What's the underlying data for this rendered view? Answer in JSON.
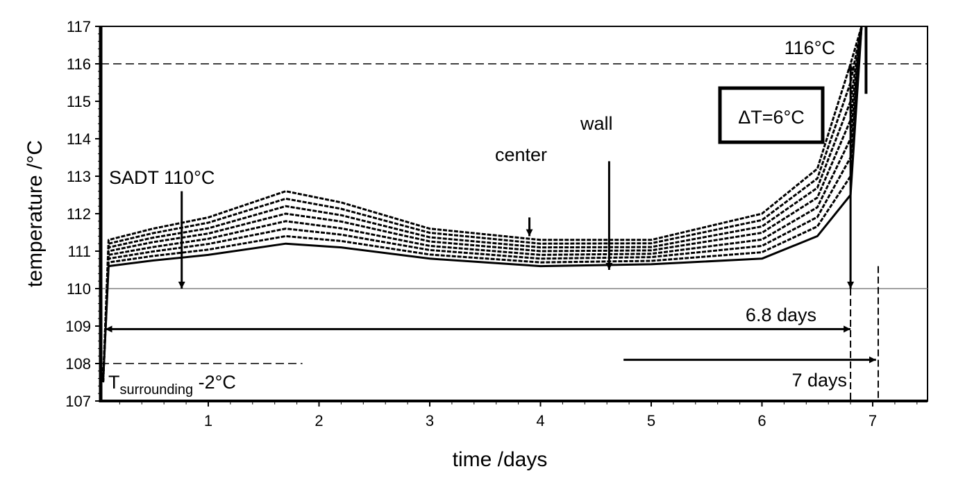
{
  "chart_data": {
    "type": "line",
    "title": "",
    "xlabel": "time /days",
    "ylabel": "temperature /°C",
    "xlim": [
      0,
      7.5
    ],
    "ylim": [
      107,
      117
    ],
    "xticks": [
      1,
      2,
      3,
      4,
      5,
      6,
      7
    ],
    "xtick_labels": [
      "1",
      "2",
      "3",
      "4",
      "5",
      "6",
      "7"
    ],
    "yticks": [
      107,
      108,
      109,
      110,
      111,
      112,
      113,
      114,
      115,
      116,
      117
    ],
    "ytick_labels": [
      "107",
      "108",
      "109",
      "110",
      "111",
      "112",
      "113",
      "114",
      "115",
      "116",
      "117"
    ],
    "grid": false,
    "x": [
      0.05,
      0.1,
      0.5,
      1,
      1.7,
      2.2,
      3,
      4,
      5,
      6,
      6.5,
      6.8,
      6.9
    ],
    "series": [
      {
        "values": [
          107.5,
          110.6,
          110.75,
          110.9,
          111.2,
          111.1,
          110.8,
          110.6,
          110.65,
          110.8,
          111.4,
          112.5,
          117
        ]
      },
      {
        "values": [
          107.5,
          110.7,
          110.87,
          111.04,
          111.4,
          111.27,
          110.91,
          110.7,
          110.74,
          110.97,
          111.66,
          113.0,
          117
        ]
      },
      {
        "values": [
          107.5,
          110.8,
          110.99,
          111.19,
          111.6,
          111.44,
          111.03,
          110.8,
          110.84,
          111.14,
          111.91,
          113.5,
          117
        ]
      },
      {
        "values": [
          107.5,
          110.9,
          111.11,
          111.33,
          111.8,
          111.61,
          111.14,
          110.9,
          110.93,
          111.31,
          112.17,
          114.0,
          117
        ]
      },
      {
        "values": [
          107.5,
          111.0,
          111.24,
          111.47,
          112.0,
          111.79,
          111.26,
          111.0,
          111.02,
          111.49,
          112.43,
          114.5,
          117
        ]
      },
      {
        "values": [
          107.5,
          111.1,
          111.36,
          111.61,
          112.2,
          111.96,
          111.37,
          111.1,
          111.11,
          111.66,
          112.69,
          115.0,
          117
        ]
      },
      {
        "values": [
          107.5,
          111.2,
          111.48,
          111.76,
          112.4,
          112.13,
          111.49,
          111.2,
          111.21,
          111.83,
          112.94,
          115.5,
          117
        ]
      },
      {
        "values": [
          107.5,
          111.3,
          111.6,
          111.9,
          112.6,
          112.3,
          111.6,
          111.3,
          111.3,
          112.0,
          113.2,
          116.0,
          117
        ]
      }
    ],
    "reference_lines": [
      {
        "y": 116,
        "style": "dashed"
      },
      {
        "y": 110,
        "style": "solid",
        "color": "#808080"
      },
      {
        "y": 108,
        "style": "dashed",
        "x_end": 1.85
      }
    ],
    "annotations": {
      "sadt": "SADT 110°C",
      "center": "center",
      "wall": "wall",
      "t116": "116°C",
      "delta_t": "ΔT=6°C",
      "days68": "6.8 days",
      "days7": "7 days",
      "tsur_main": "T",
      "tsur_sub": "surrounding",
      "tsur_rest": " -2°C"
    },
    "colors": {
      "lines": "#000000",
      "ref110": "#808080"
    }
  }
}
